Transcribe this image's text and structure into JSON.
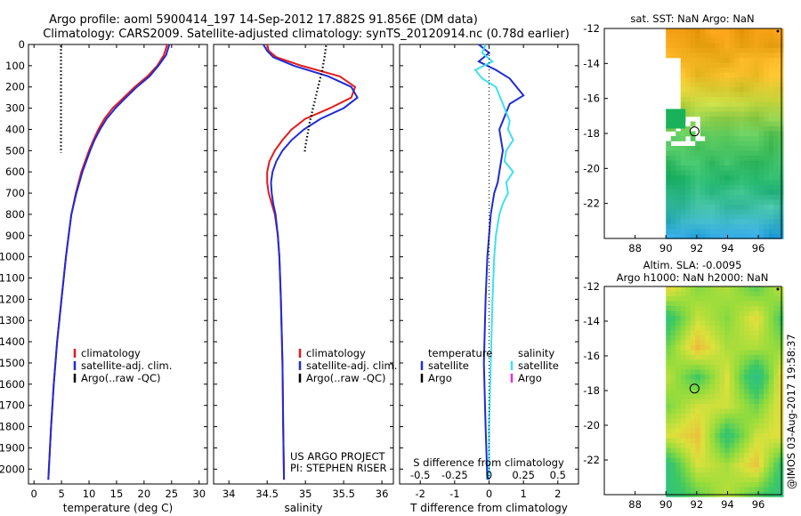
{
  "header": {
    "line1": "Argo profile: aoml 5900414_197 14-Sep-2012 17.882S 91.856E (DM data)",
    "line2": "Climatology: CARS2009. Satellite-adjusted climatology: synTS_20120914.nc (0.78d earlier)"
  },
  "colors": {
    "climatology": "#e41a1c",
    "satellite": "#1f2bd8",
    "argo": "#000000",
    "argo_salinity_diff": "#e22ee2",
    "satellite_salinity_diff": "#3fe0f0"
  },
  "credit": "@IMOS 03-Aug-2017 19:58:37",
  "chart_data": [
    {
      "id": "temperature",
      "type": "line",
      "xlabel": "temperature (deg C)",
      "ylabel": "",
      "xlim": [
        -1,
        31.5
      ],
      "ylim": [
        2070,
        0
      ],
      "xticks": [
        "0",
        "5",
        "10",
        "15",
        "20",
        "25",
        "30"
      ],
      "xtick_values": [
        0,
        5,
        10,
        15,
        20,
        25,
        30
      ],
      "yticks": [
        "0",
        "100",
        "200",
        "300",
        "400",
        "500",
        "600",
        "700",
        "800",
        "900",
        "1000",
        "1100",
        "1200",
        "1300",
        "1400",
        "1500",
        "1600",
        "1700",
        "1800",
        "1900",
        "2000"
      ],
      "legend": [
        "climatology",
        "satellite-adj. clim.",
        "Argo(..raw -QC)"
      ],
      "series": [
        {
          "name": "climatology",
          "color": "#e41a1c",
          "depth": [
            0,
            50,
            100,
            150,
            200,
            250,
            300,
            350,
            400,
            450,
            500,
            600,
            700,
            800,
            900,
            1000,
            1200,
            1400,
            1600,
            1800,
            2000,
            2050
          ],
          "values": [
            24.2,
            23.6,
            22.4,
            20.6,
            18.3,
            16.3,
            14.3,
            12.8,
            11.7,
            10.8,
            10.0,
            8.6,
            7.6,
            6.8,
            6.3,
            5.8,
            5.0,
            4.2,
            3.6,
            3.1,
            2.7,
            2.6
          ]
        },
        {
          "name": "satellite-adj. clim.",
          "color": "#1f2bd8",
          "depth": [
            0,
            50,
            100,
            150,
            200,
            250,
            300,
            350,
            400,
            450,
            500,
            600,
            700,
            800,
            900,
            1000,
            1200,
            1400,
            1600,
            1800,
            2000,
            2050
          ],
          "values": [
            24.6,
            24.0,
            22.6,
            21.0,
            18.7,
            16.7,
            14.8,
            13.2,
            12.0,
            11.0,
            10.2,
            8.8,
            7.7,
            6.8,
            6.3,
            5.8,
            5.0,
            4.2,
            3.6,
            3.1,
            2.7,
            2.6
          ]
        },
        {
          "name": "Argo(..raw -QC)",
          "color": "#000000",
          "dotted": true,
          "depth": [
            5,
            60,
            120,
            180,
            240,
            300,
            360,
            420,
            480,
            510
          ],
          "values": [
            4.9,
            4.9,
            4.9,
            4.9,
            4.9,
            4.9,
            4.9,
            4.9,
            4.9,
            4.9
          ]
        }
      ]
    },
    {
      "id": "salinity",
      "type": "line",
      "xlabel": "salinity",
      "xlim": [
        33.8,
        36.15
      ],
      "ylim": [
        2070,
        0
      ],
      "xticks": [
        "34",
        "34.5",
        "35",
        "35.5",
        "36"
      ],
      "xtick_values": [
        34,
        34.5,
        35,
        35.5,
        36
      ],
      "legend": [
        "climatology",
        "satellite-adj. clim.",
        "Argo(..raw -QC)"
      ],
      "annotation": [
        "US ARGO PROJECT",
        "PI: STEPHEN RISER"
      ],
      "series": [
        {
          "name": "climatology",
          "color": "#e41a1c",
          "depth": [
            0,
            30,
            60,
            100,
            150,
            200,
            250,
            300,
            350,
            400,
            450,
            500,
            550,
            600,
            650,
            700,
            750,
            800,
            900,
            1000,
            1200,
            1500,
            1800,
            2050
          ],
          "values": [
            34.5,
            34.52,
            34.62,
            34.95,
            35.45,
            35.65,
            35.6,
            35.32,
            35.0,
            34.82,
            34.7,
            34.6,
            34.53,
            34.5,
            34.5,
            34.52,
            34.56,
            34.6,
            34.64,
            34.66,
            34.68,
            34.7,
            34.71,
            34.72
          ]
        },
        {
          "name": "satellite-adj. clim.",
          "color": "#1f2bd8",
          "depth": [
            0,
            30,
            60,
            100,
            150,
            200,
            250,
            300,
            350,
            400,
            450,
            500,
            550,
            600,
            650,
            700,
            750,
            800,
            900,
            1000,
            1200,
            1500,
            1800,
            2050
          ],
          "values": [
            34.45,
            34.5,
            34.58,
            34.85,
            35.3,
            35.6,
            35.68,
            35.5,
            35.2,
            34.98,
            34.82,
            34.7,
            34.62,
            34.57,
            34.55,
            34.56,
            34.58,
            34.61,
            34.64,
            34.66,
            34.68,
            34.7,
            34.71,
            34.72
          ]
        },
        {
          "name": "Argo(..raw -QC)",
          "color": "#000000",
          "dotted": true,
          "depth": [
            5,
            60,
            120,
            180,
            240,
            300,
            360,
            420,
            480,
            510
          ],
          "values": [
            35.27,
            35.25,
            35.22,
            35.18,
            35.14,
            35.1,
            35.06,
            35.03,
            35.0,
            34.99
          ]
        }
      ]
    },
    {
      "id": "difference",
      "type": "line",
      "xlabel": "T difference from climatology",
      "xlabel2": "S difference from climatology",
      "xlim": [
        -2.6,
        2.6
      ],
      "ylim": [
        2070,
        0
      ],
      "xticks": [
        "-2",
        "-1",
        "0",
        "1",
        "2"
      ],
      "xtick_values": [
        -2,
        -1,
        0,
        1,
        2
      ],
      "sticks": [
        "-0.5",
        "-0.25",
        "0",
        "0.25",
        "0.5"
      ],
      "stick_values": [
        -2,
        -1,
        0,
        1,
        2
      ],
      "legend_title_t": "temperature",
      "legend_title_s": "salinity",
      "legend_t": [
        "satellite",
        "Argo"
      ],
      "legend_s": [
        "satellite",
        "Argo"
      ],
      "series": [
        {
          "name": "temperature satellite",
          "color": "#1f2bd8",
          "depth": [
            0,
            40,
            80,
            120,
            160,
            200,
            240,
            280,
            320,
            360,
            400,
            450,
            500,
            550,
            600,
            650,
            700,
            800,
            900,
            1000,
            1200,
            1500,
            1800,
            2050
          ],
          "values": [
            -0.3,
            0.0,
            -0.3,
            0.2,
            0.6,
            0.8,
            1.0,
            0.6,
            0.5,
            0.4,
            0.3,
            0.35,
            0.4,
            0.35,
            0.3,
            0.25,
            0.15,
            0.05,
            0.0,
            -0.05,
            -0.1,
            -0.15,
            -0.1,
            -0.05
          ]
        },
        {
          "name": "salinity satellite",
          "color": "#3fe0f0",
          "depth": [
            0,
            40,
            80,
            120,
            160,
            200,
            240,
            280,
            320,
            360,
            400,
            450,
            500,
            550,
            600,
            650,
            700,
            750,
            800,
            900,
            1000,
            1200,
            1500,
            1800,
            2050
          ],
          "values": [
            -0.1,
            -0.2,
            0.1,
            -0.4,
            -0.2,
            0.2,
            0.3,
            0.4,
            0.5,
            0.6,
            0.55,
            0.7,
            0.5,
            0.45,
            0.7,
            0.5,
            0.55,
            0.4,
            0.3,
            0.2,
            0.15,
            0.1,
            0.05,
            0.0,
            0.0
          ]
        }
      ]
    },
    {
      "id": "sst_map",
      "type": "heatmap",
      "title": "sat. SST: NaN Argo: NaN",
      "xlim": [
        86,
        97.5
      ],
      "ylim": [
        -24,
        -12
      ],
      "xticks": [
        "88",
        "90",
        "92",
        "94",
        "96"
      ],
      "xtick_values": [
        88,
        90,
        92,
        94,
        96
      ],
      "yticks": [
        "-12",
        "-14",
        "-16",
        "-18",
        "-20",
        "-22"
      ],
      "ytick_values": [
        -12,
        -14,
        -16,
        -18,
        -20,
        -22
      ],
      "marker": [
        91.856,
        -17.882
      ]
    },
    {
      "id": "sla_map",
      "type": "heatmap",
      "title": "Altim. SLA: -0.0095",
      "title2": "Argo h1000: NaN h2000: NaN",
      "xlim": [
        86,
        97.5
      ],
      "ylim": [
        -24,
        -12
      ],
      "xticks": [
        "88",
        "90",
        "92",
        "94",
        "96"
      ],
      "xtick_values": [
        88,
        90,
        92,
        94,
        96
      ],
      "yticks": [
        "-12",
        "-14",
        "-16",
        "-18",
        "-20",
        "-22"
      ],
      "ytick_values": [
        -12,
        -14,
        -16,
        -18,
        -20,
        -22
      ],
      "marker": [
        91.856,
        -17.882
      ]
    }
  ]
}
